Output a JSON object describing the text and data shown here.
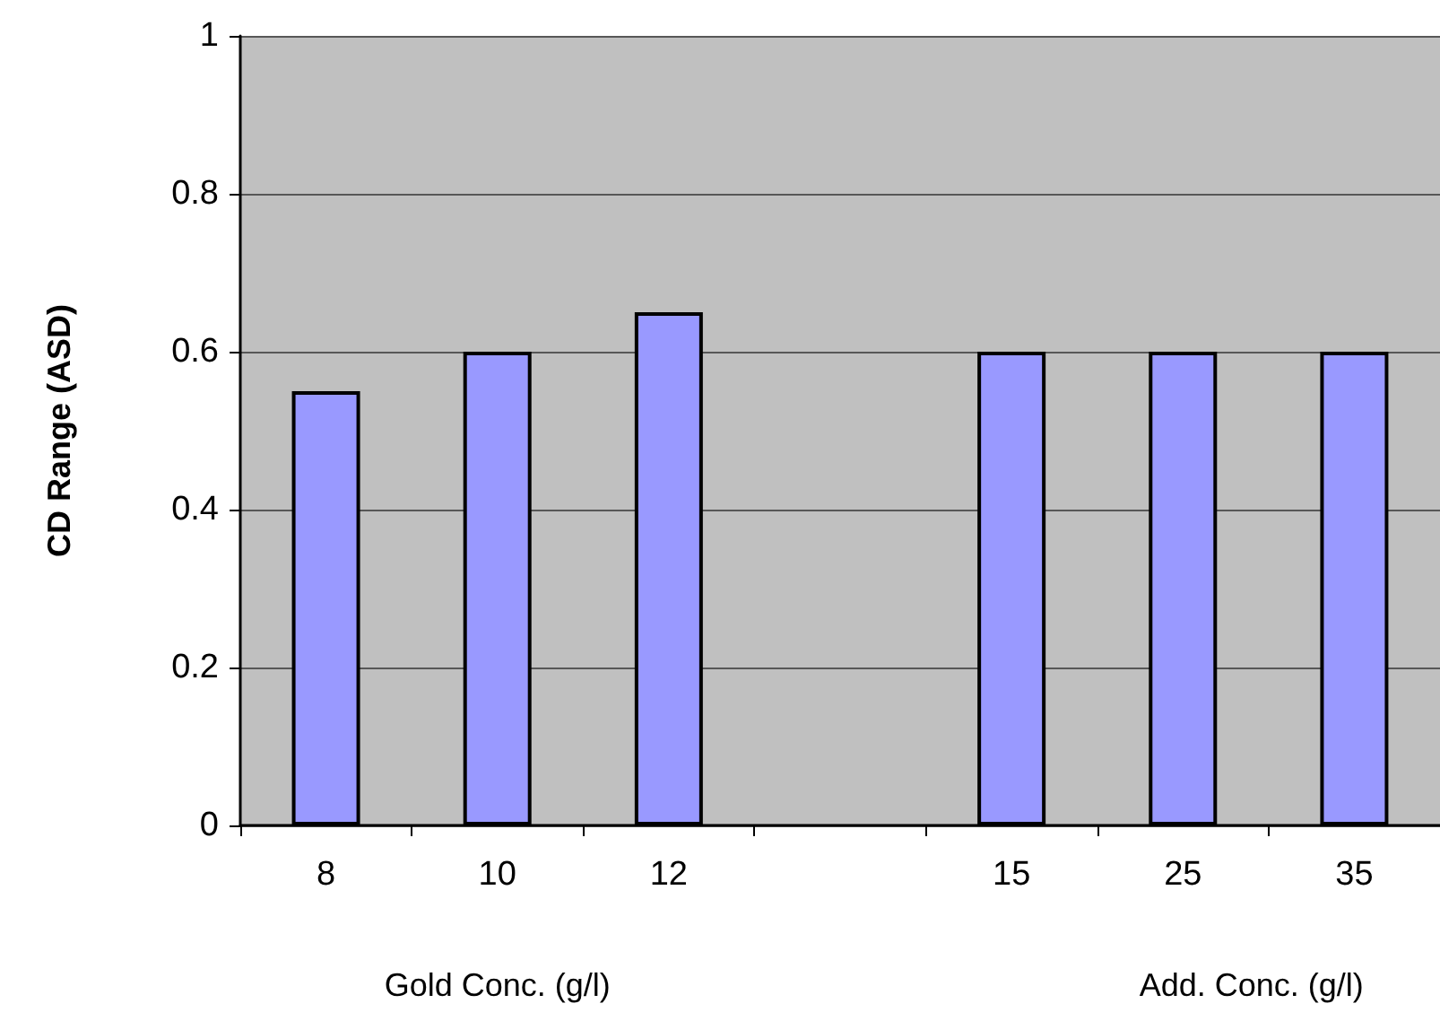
{
  "chart_data": {
    "type": "bar",
    "ylabel": "CD Range (ASD)",
    "categories": [
      "8",
      "10",
      "12",
      null,
      "15",
      "25",
      "35"
    ],
    "values": [
      0.55,
      0.6,
      0.65,
      null,
      0.6,
      0.6,
      0.6
    ],
    "color": "#9999ff",
    "ylim": [
      0,
      1
    ],
    "yticks": [
      0,
      0.2,
      0.4,
      0.6,
      0.8,
      1
    ],
    "grid": "y",
    "annotations": [
      "Gold Conc. (g/l)",
      "Add. Conc. (g/l)"
    ]
  }
}
